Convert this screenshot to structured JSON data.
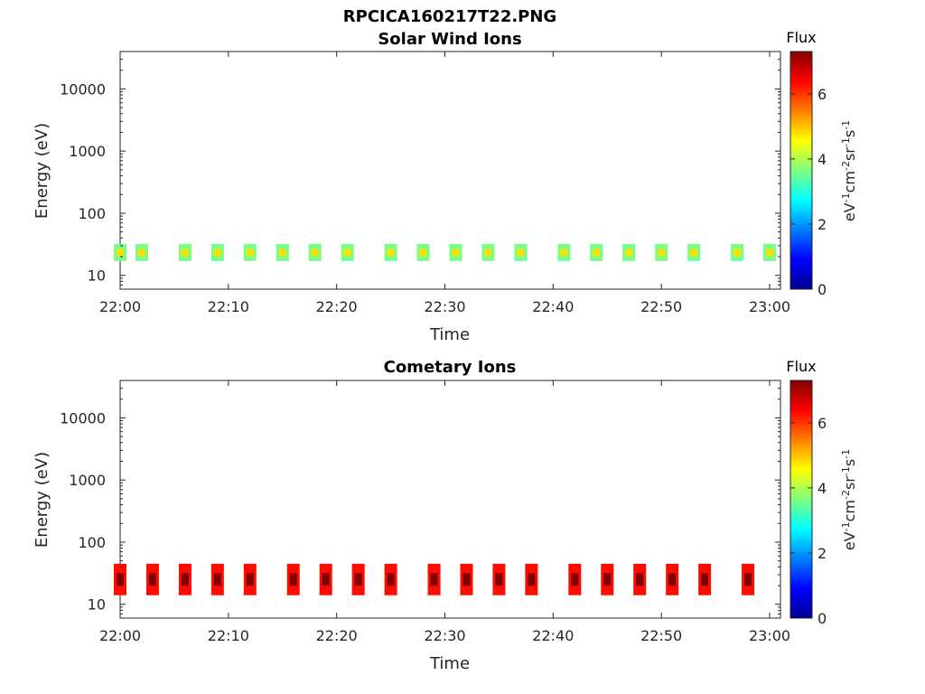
{
  "figure_title": "RPCICA160217T22.PNG",
  "chart_data": [
    {
      "type": "heatmap",
      "title": "Solar Wind Ions",
      "xlabel": "Time",
      "ylabel": "Energy (eV)",
      "xlim": [
        "22:00",
        "23:01"
      ],
      "ylim": [
        6,
        40000
      ],
      "yscale": "log",
      "x_ticks": [
        "22:00",
        "22:10",
        "22:20",
        "22:30",
        "22:40",
        "22:50",
        "23:00"
      ],
      "y_ticks": [
        "10",
        "100",
        "1000",
        "10000"
      ],
      "colorbar": {
        "label_top": "Flux",
        "units": "eV-1cm-2sr-1s-1",
        "range": [
          0,
          7.3
        ],
        "ticks": [
          "0",
          "2",
          "4",
          "6"
        ],
        "colormap": "jet"
      },
      "bands": [
        {
          "t": "22:00",
          "emin": 17,
          "emax": 32,
          "level": 3.6
        },
        {
          "t": "22:02",
          "emin": 17,
          "emax": 32,
          "level": 3.6
        },
        {
          "t": "22:06",
          "emin": 17,
          "emax": 32,
          "level": 3.6
        },
        {
          "t": "22:09",
          "emin": 17,
          "emax": 32,
          "level": 3.6
        },
        {
          "t": "22:12",
          "emin": 17,
          "emax": 32,
          "level": 3.6
        },
        {
          "t": "22:15",
          "emin": 17,
          "emax": 32,
          "level": 3.6
        },
        {
          "t": "22:18",
          "emin": 17,
          "emax": 32,
          "level": 3.6
        },
        {
          "t": "22:21",
          "emin": 17,
          "emax": 32,
          "level": 3.6
        },
        {
          "t": "22:25",
          "emin": 17,
          "emax": 32,
          "level": 3.6
        },
        {
          "t": "22:28",
          "emin": 17,
          "emax": 32,
          "level": 3.6
        },
        {
          "t": "22:31",
          "emin": 17,
          "emax": 32,
          "level": 3.6
        },
        {
          "t": "22:34",
          "emin": 17,
          "emax": 32,
          "level": 3.6
        },
        {
          "t": "22:37",
          "emin": 17,
          "emax": 32,
          "level": 3.6
        },
        {
          "t": "22:41",
          "emin": 17,
          "emax": 32,
          "level": 3.6
        },
        {
          "t": "22:44",
          "emin": 17,
          "emax": 32,
          "level": 3.6
        },
        {
          "t": "22:47",
          "emin": 17,
          "emax": 32,
          "level": 3.6
        },
        {
          "t": "22:50",
          "emin": 17,
          "emax": 32,
          "level": 3.6
        },
        {
          "t": "22:53",
          "emin": 17,
          "emax": 32,
          "level": 3.6
        },
        {
          "t": "22:57",
          "emin": 17,
          "emax": 32,
          "level": 3.6
        },
        {
          "t": "23:00",
          "emin": 17,
          "emax": 32,
          "level": 3.6
        }
      ]
    },
    {
      "type": "heatmap",
      "title": "Cometary Ions",
      "xlabel": "Time",
      "ylabel": "Energy (eV)",
      "xlim": [
        "22:00",
        "23:01"
      ],
      "ylim": [
        6,
        40000
      ],
      "yscale": "log",
      "x_ticks": [
        "22:00",
        "22:10",
        "22:20",
        "22:30",
        "22:40",
        "22:50",
        "23:00"
      ],
      "y_ticks": [
        "10",
        "100",
        "1000",
        "10000"
      ],
      "colorbar": {
        "label_top": "Flux",
        "units": "eV-1cm-2sr-1s-1",
        "range": [
          0,
          7.3
        ],
        "ticks": [
          "0",
          "2",
          "4",
          "6"
        ],
        "colormap": "jet"
      },
      "bands": [
        {
          "t": "22:00",
          "emin": 14,
          "emax": 45,
          "level": 6.3
        },
        {
          "t": "22:03",
          "emin": 14,
          "emax": 45,
          "level": 6.3
        },
        {
          "t": "22:06",
          "emin": 14,
          "emax": 45,
          "level": 6.3
        },
        {
          "t": "22:09",
          "emin": 14,
          "emax": 45,
          "level": 6.3
        },
        {
          "t": "22:12",
          "emin": 14,
          "emax": 45,
          "level": 6.3
        },
        {
          "t": "22:16",
          "emin": 14,
          "emax": 45,
          "level": 6.3
        },
        {
          "t": "22:19",
          "emin": 14,
          "emax": 45,
          "level": 6.3
        },
        {
          "t": "22:22",
          "emin": 14,
          "emax": 45,
          "level": 6.3
        },
        {
          "t": "22:25",
          "emin": 14,
          "emax": 45,
          "level": 6.3
        },
        {
          "t": "22:29",
          "emin": 14,
          "emax": 45,
          "level": 6.3
        },
        {
          "t": "22:32",
          "emin": 14,
          "emax": 45,
          "level": 6.3
        },
        {
          "t": "22:35",
          "emin": 14,
          "emax": 45,
          "level": 6.3
        },
        {
          "t": "22:38",
          "emin": 14,
          "emax": 45,
          "level": 6.3
        },
        {
          "t": "22:42",
          "emin": 14,
          "emax": 45,
          "level": 6.3
        },
        {
          "t": "22:45",
          "emin": 14,
          "emax": 45,
          "level": 6.3
        },
        {
          "t": "22:48",
          "emin": 14,
          "emax": 45,
          "level": 6.3
        },
        {
          "t": "22:51",
          "emin": 14,
          "emax": 45,
          "level": 6.3
        },
        {
          "t": "22:54",
          "emin": 14,
          "emax": 45,
          "level": 6.3
        },
        {
          "t": "22:58",
          "emin": 14,
          "emax": 45,
          "level": 6.3
        }
      ]
    }
  ]
}
